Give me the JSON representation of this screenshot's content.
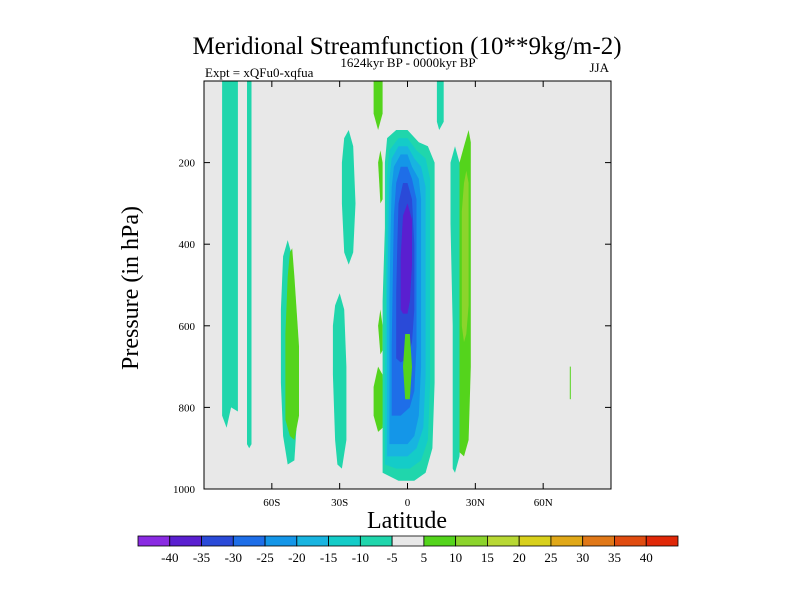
{
  "chart_data": {
    "type": "contour",
    "title": "Meridional Streamfunction (10**9kg/m-2)",
    "subtitle_left": "Expt = xQFu0-xqfua",
    "subtitle_center": "1624kyr BP - 0000kyr BP",
    "subtitle_right": "JJA",
    "xlabel": "Latitude",
    "ylabel": "Pressure (in hPa)",
    "xlim": [
      -90,
      90
    ],
    "ylim": [
      1000,
      0
    ],
    "x_ticks": [
      {
        "value": -60,
        "label": "60S"
      },
      {
        "value": -30,
        "label": "30S"
      },
      {
        "value": 0,
        "label": "0"
      },
      {
        "value": 30,
        "label": "30N"
      },
      {
        "value": 60,
        "label": "60N"
      }
    ],
    "y_ticks": [
      {
        "value": 200,
        "label": "200"
      },
      {
        "value": 400,
        "label": "400"
      },
      {
        "value": 600,
        "label": "600"
      },
      {
        "value": 800,
        "label": "800"
      },
      {
        "value": 1000,
        "label": "1000"
      }
    ],
    "background_fill": "#e8e8e8",
    "colorbar": {
      "levels": [
        "-40",
        "-35",
        "-30",
        "-25",
        "-20",
        "-15",
        "-10",
        "-5",
        "5",
        "10",
        "15",
        "20",
        "25",
        "30",
        "35",
        "40"
      ],
      "colors": [
        "#8a2be2",
        "#5a1fd0",
        "#2a4ad8",
        "#1e6ee8",
        "#1496e8",
        "#18b4e0",
        "#14ccc8",
        "#20d6ac",
        "#e8e8e8",
        "#54d41c",
        "#8cd42c",
        "#b8d834",
        "#d8d01c",
        "#e0a818",
        "#e07818",
        "#e04c10",
        "#e02808"
      ]
    },
    "regions": [
      {
        "name": "band 80S",
        "level": "-5",
        "poly": [
          [
            -82,
            0
          ],
          [
            -82,
            820
          ],
          [
            -80,
            850
          ],
          [
            -78,
            800
          ],
          [
            -75,
            810
          ],
          [
            -75,
            0
          ]
        ]
      },
      {
        "name": "band 72S",
        "level": "-5",
        "poly": [
          [
            -71,
            0
          ],
          [
            -71,
            890
          ],
          [
            -70,
            900
          ],
          [
            -69,
            890
          ],
          [
            -69,
            0
          ]
        ]
      },
      {
        "name": "lens 52S",
        "level": "-5",
        "poly": [
          [
            -55,
            870
          ],
          [
            -56,
            740
          ],
          [
            -56,
            560
          ],
          [
            -55,
            430
          ],
          [
            -53,
            390
          ],
          [
            -51,
            430
          ],
          [
            -49,
            600
          ],
          [
            -49,
            840
          ],
          [
            -50,
            930
          ],
          [
            -53,
            940
          ]
        ]
      },
      {
        "name": "plume 46S",
        "level": "5",
        "poly": [
          [
            -54,
            830
          ],
          [
            -54,
            620
          ],
          [
            -53,
            480
          ],
          [
            -52,
            420
          ],
          [
            -51,
            410
          ],
          [
            -50,
            480
          ],
          [
            -48,
            650
          ],
          [
            -48,
            820
          ],
          [
            -50,
            880
          ],
          [
            -52,
            870
          ]
        ]
      },
      {
        "name": "lens 30S",
        "level": "-5",
        "poly": [
          [
            -32,
            880
          ],
          [
            -33,
            720
          ],
          [
            -33,
            600
          ],
          [
            -32,
            550
          ],
          [
            -30,
            520
          ],
          [
            -28,
            560
          ],
          [
            -27,
            700
          ],
          [
            -27,
            880
          ],
          [
            -29,
            950
          ],
          [
            -31,
            940
          ]
        ]
      },
      {
        "name": "lens 25S upper",
        "level": "-5",
        "poly": [
          [
            -28,
            420
          ],
          [
            -29,
            300
          ],
          [
            -29,
            200
          ],
          [
            -28,
            140
          ],
          [
            -26,
            120
          ],
          [
            -24,
            160
          ],
          [
            -23,
            300
          ],
          [
            -24,
            420
          ],
          [
            -26,
            450
          ]
        ]
      },
      {
        "name": "bar 15S upper",
        "level": "5",
        "poly": [
          [
            -15,
            0
          ],
          [
            -15,
            80
          ],
          [
            -13,
            120
          ],
          [
            -11,
            80
          ],
          [
            -11,
            0
          ]
        ]
      },
      {
        "name": "blob 10S lower",
        "level": "5",
        "poly": [
          [
            -15,
            820
          ],
          [
            -15,
            750
          ],
          [
            -13,
            700
          ],
          [
            -11,
            720
          ],
          [
            -10,
            790
          ],
          [
            -11,
            850
          ],
          [
            -13,
            860
          ]
        ]
      },
      {
        "name": "sliver 12S",
        "level": "5",
        "poly": [
          [
            -12,
            300
          ],
          [
            -13,
            200
          ],
          [
            -12,
            170
          ],
          [
            -11,
            200
          ],
          [
            -11,
            290
          ]
        ]
      },
      {
        "name": "sliver 12S low",
        "level": "5",
        "poly": [
          [
            -12,
            670
          ],
          [
            -13,
            600
          ],
          [
            -12,
            560
          ],
          [
            -11,
            600
          ],
          [
            -11,
            660
          ]
        ]
      },
      {
        "name": "cell L1",
        "level": "-5",
        "poly": [
          [
            -11,
            960
          ],
          [
            -11,
            720
          ],
          [
            -11,
            540
          ],
          [
            -10,
            360
          ],
          [
            -10,
            200
          ],
          [
            -9,
            140
          ],
          [
            -5,
            120
          ],
          [
            0,
            120
          ],
          [
            5,
            150
          ],
          [
            9,
            160
          ],
          [
            12,
            200
          ],
          [
            12,
            480
          ],
          [
            12,
            740
          ],
          [
            11,
            900
          ],
          [
            8,
            960
          ],
          [
            3,
            980
          ],
          [
            -4,
            980
          ]
        ]
      },
      {
        "name": "cell L2",
        "level": "-10",
        "poly": [
          [
            -10,
            940
          ],
          [
            -10,
            720
          ],
          [
            -9.5,
            540
          ],
          [
            -9.5,
            380
          ],
          [
            -9,
            230
          ],
          [
            -8,
            170
          ],
          [
            -4,
            140
          ],
          [
            0,
            140
          ],
          [
            4,
            170
          ],
          [
            8,
            190
          ],
          [
            10,
            240
          ],
          [
            10,
            480
          ],
          [
            10,
            740
          ],
          [
            9,
            880
          ],
          [
            6,
            930
          ],
          [
            1,
            950
          ],
          [
            -5,
            950
          ]
        ]
      },
      {
        "name": "cell L3",
        "level": "-15",
        "poly": [
          [
            -9,
            920
          ],
          [
            -9,
            720
          ],
          [
            -9,
            540
          ],
          [
            -8.5,
            380
          ],
          [
            -8,
            240
          ],
          [
            -7,
            190
          ],
          [
            -4,
            160
          ],
          [
            0,
            160
          ],
          [
            3,
            190
          ],
          [
            6,
            210
          ],
          [
            8,
            260
          ],
          [
            8,
            480
          ],
          [
            8,
            720
          ],
          [
            7,
            850
          ],
          [
            4,
            900
          ],
          [
            0,
            920
          ],
          [
            -5,
            920
          ]
        ]
      },
      {
        "name": "cell L4",
        "level": "-20",
        "poly": [
          [
            -8,
            890
          ],
          [
            -8,
            720
          ],
          [
            -8,
            540
          ],
          [
            -7.5,
            380
          ],
          [
            -7,
            260
          ],
          [
            -6,
            210
          ],
          [
            -3,
            180
          ],
          [
            0,
            180
          ],
          [
            2,
            210
          ],
          [
            5,
            240
          ],
          [
            6,
            290
          ],
          [
            6,
            480
          ],
          [
            6,
            700
          ],
          [
            5,
            820
          ],
          [
            3,
            870
          ],
          [
            0,
            890
          ],
          [
            -4,
            890
          ]
        ]
      },
      {
        "name": "cell L5",
        "level": "-25",
        "poly": [
          [
            -7,
            820
          ],
          [
            -7,
            650
          ],
          [
            -6.5,
            480
          ],
          [
            -6,
            330
          ],
          [
            -5,
            250
          ],
          [
            -3,
            210
          ],
          [
            0,
            210
          ],
          [
            2,
            240
          ],
          [
            4,
            290
          ],
          [
            4,
            480
          ],
          [
            4,
            650
          ],
          [
            3,
            760
          ],
          [
            1,
            800
          ],
          [
            -3,
            820
          ]
        ]
      },
      {
        "name": "cell L6",
        "level": "-30",
        "poly": [
          [
            -5,
            680
          ],
          [
            -5,
            520
          ],
          [
            -4.5,
            400
          ],
          [
            -4,
            300
          ],
          [
            -2,
            250
          ],
          [
            0,
            250
          ],
          [
            2,
            290
          ],
          [
            3,
            400
          ],
          [
            3,
            560
          ],
          [
            2,
            640
          ],
          [
            0,
            680
          ],
          [
            -3,
            690
          ]
        ]
      },
      {
        "name": "cell L7",
        "level": "-35",
        "poly": [
          [
            -3,
            560
          ],
          [
            -3,
            430
          ],
          [
            -2,
            330
          ],
          [
            0,
            300
          ],
          [
            2,
            340
          ],
          [
            2,
            450
          ],
          [
            1,
            540
          ],
          [
            0,
            570
          ],
          [
            -2,
            570
          ]
        ]
      },
      {
        "name": "cell gap",
        "level": "5",
        "poly": [
          [
            -1,
            780
          ],
          [
            -2,
            700
          ],
          [
            -1,
            620
          ],
          [
            1,
            620
          ],
          [
            2,
            700
          ],
          [
            1,
            780
          ]
        ]
      },
      {
        "name": "bar 15N upper",
        "level": "-5",
        "poly": [
          [
            13,
            0
          ],
          [
            13,
            100
          ],
          [
            14,
            120
          ],
          [
            16,
            100
          ],
          [
            16,
            0
          ]
        ]
      },
      {
        "name": "lens 25N",
        "level": "-5",
        "poly": [
          [
            20,
            950
          ],
          [
            20,
            800
          ],
          [
            20,
            600
          ],
          [
            19,
            350
          ],
          [
            19,
            200
          ],
          [
            21,
            160
          ],
          [
            23,
            200
          ],
          [
            23,
            400
          ],
          [
            24,
            600
          ],
          [
            24,
            800
          ],
          [
            23,
            920
          ],
          [
            21,
            960
          ]
        ]
      },
      {
        "name": "plume 28N",
        "level": "5",
        "poly": [
          [
            23,
            910
          ],
          [
            23,
            700
          ],
          [
            23,
            500
          ],
          [
            23,
            300
          ],
          [
            23,
            200
          ],
          [
            25,
            160
          ],
          [
            27,
            120
          ],
          [
            28,
            150
          ],
          [
            28,
            400
          ],
          [
            28,
            700
          ],
          [
            27,
            880
          ],
          [
            25,
            920
          ]
        ]
      },
      {
        "name": "core 26N",
        "level": "10",
        "poly": [
          [
            24,
            600
          ],
          [
            24,
            450
          ],
          [
            24,
            320
          ],
          [
            25,
            250
          ],
          [
            26,
            220
          ],
          [
            27,
            250
          ],
          [
            27,
            400
          ],
          [
            27,
            550
          ],
          [
            26,
            620
          ],
          [
            25,
            640
          ]
        ]
      },
      {
        "name": "dot 73N",
        "level": "5",
        "poly": [
          [
            71.8,
            700
          ],
          [
            72.2,
            700
          ],
          [
            72.2,
            780
          ],
          [
            71.8,
            780
          ]
        ]
      }
    ]
  }
}
